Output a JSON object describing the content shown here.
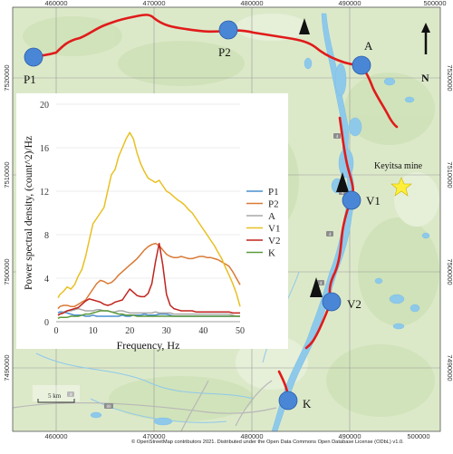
{
  "map": {
    "x_ticks": [
      "460000",
      "470000",
      "480000",
      "490000",
      "500000"
    ],
    "y_ticks": [
      "7520000",
      "7510000",
      "7500000",
      "7490000"
    ],
    "north_label": "N",
    "scalebar_label": "5 km",
    "mine_label": "Keyitsa mine",
    "station_labels": [
      "P1",
      "P2",
      "A",
      "V1",
      "V2",
      "K"
    ],
    "road_numbers": [
      "4",
      "4",
      "4",
      "4",
      "4",
      "80"
    ],
    "attribution": "© OpenStreetMap contributors 2021. Distributed under the Open Data Commons Open Database License (ODbL) v1.0.",
    "colors": {
      "route": "#e01b1b",
      "station": "#4a86d6",
      "mine_star": "#ffef3a",
      "land": "#dbe9c8",
      "water": "#8ec9ea"
    }
  },
  "chart_data": {
    "type": "line",
    "xlabel": "Frequency, Hz",
    "ylabel": "Power spectral density, (count^2)/Hz",
    "xlim": [
      0,
      50
    ],
    "ylim": [
      0,
      20
    ],
    "x_ticks": [
      0,
      10,
      20,
      30,
      40,
      50
    ],
    "y_ticks": [
      0,
      4,
      8,
      12,
      16,
      20
    ],
    "legend_position": "right",
    "x": [
      0.5,
      1,
      2,
      3,
      4,
      5,
      6,
      7,
      8,
      9,
      10,
      11,
      12,
      13,
      14,
      15,
      16,
      17,
      18,
      19,
      20,
      21,
      22,
      23,
      24,
      25,
      26,
      27,
      28,
      29,
      30,
      31,
      32,
      33,
      34,
      35,
      36,
      37,
      38,
      39,
      40,
      41,
      42,
      43,
      44,
      45,
      46,
      47,
      48,
      49,
      50
    ],
    "series": [
      {
        "name": "P1",
        "color": "#4a8fd0",
        "values": [
          0.8,
          0.9,
          0.9,
          0.8,
          0.7,
          0.6,
          0.6,
          0.6,
          0.5,
          0.5,
          0.6,
          0.5,
          0.5,
          0.5,
          0.5,
          0.5,
          0.5,
          0.5,
          0.6,
          0.5,
          0.5,
          0.6,
          0.6,
          0.6,
          0.7,
          0.6,
          0.6,
          0.6,
          0.7,
          0.7,
          0.7,
          0.6,
          0.5,
          0.5,
          0.5,
          0.5,
          0.5,
          0.5,
          0.5,
          0.5,
          0.5,
          0.5,
          0.5,
          0.5,
          0.5,
          0.5,
          0.5,
          0.5,
          0.5,
          0.5,
          0.5
        ]
      },
      {
        "name": "P2",
        "color": "#d97a36",
        "values": [
          1.2,
          1.4,
          1.5,
          1.5,
          1.4,
          1.4,
          1.6,
          1.8,
          2.0,
          2.5,
          3.0,
          3.5,
          3.8,
          3.7,
          3.5,
          3.6,
          3.9,
          4.3,
          4.6,
          4.9,
          5.2,
          5.5,
          5.8,
          6.2,
          6.6,
          6.9,
          7.1,
          7.2,
          7.0,
          6.6,
          6.2,
          6.0,
          5.9,
          5.9,
          6.0,
          5.9,
          5.8,
          5.8,
          5.9,
          6.0,
          6.0,
          5.9,
          5.9,
          5.8,
          5.7,
          5.5,
          5.3,
          5.1,
          4.6,
          4.0,
          3.4
        ]
      },
      {
        "name": "A",
        "color": "#a8a8a8",
        "values": [
          0.6,
          0.7,
          0.9,
          1.0,
          1.0,
          1.1,
          1.2,
          1.1,
          1.0,
          1.0,
          1.0,
          1.1,
          1.1,
          1.0,
          1.0,
          0.9,
          0.9,
          1.0,
          1.0,
          0.9,
          0.8,
          0.8,
          0.8,
          0.8,
          0.8,
          0.8,
          0.8,
          0.9,
          0.8,
          0.8,
          0.8,
          0.8,
          0.7,
          0.7,
          0.7,
          0.7,
          0.7,
          0.7,
          0.7,
          0.7,
          0.7,
          0.7,
          0.7,
          0.7,
          0.7,
          0.7,
          0.7,
          0.7,
          0.6,
          0.5,
          0.5
        ]
      },
      {
        "name": "V1",
        "color": "#e8c021",
        "values": [
          2.2,
          2.5,
          2.8,
          3.2,
          3.0,
          3.4,
          4.2,
          4.8,
          6.0,
          7.5,
          9.0,
          9.5,
          10.0,
          10.5,
          12.0,
          13.5,
          14.0,
          15.2,
          16.0,
          16.8,
          17.4,
          16.8,
          15.5,
          14.5,
          13.8,
          13.2,
          13.0,
          12.8,
          13.0,
          12.5,
          12.0,
          11.8,
          11.5,
          11.2,
          11.0,
          10.7,
          10.3,
          10.0,
          9.5,
          9.0,
          8.5,
          8.0,
          7.5,
          7.0,
          6.4,
          5.8,
          5.0,
          4.3,
          3.5,
          2.6,
          1.4
        ]
      },
      {
        "name": "V2",
        "color": "#c0241e",
        "values": [
          0.6,
          0.7,
          0.8,
          1.0,
          1.1,
          1.2,
          1.3,
          1.6,
          1.9,
          2.1,
          2.0,
          1.9,
          1.8,
          1.6,
          1.5,
          1.6,
          1.8,
          1.9,
          2.0,
          2.5,
          3.0,
          2.7,
          2.4,
          2.3,
          2.3,
          2.6,
          3.5,
          5.5,
          7.2,
          5.2,
          2.5,
          1.5,
          1.2,
          1.1,
          1.0,
          1.0,
          1.0,
          1.0,
          0.9,
          0.9,
          0.9,
          0.9,
          0.9,
          0.9,
          0.9,
          0.9,
          0.9,
          0.9,
          0.8,
          0.8,
          0.8
        ]
      },
      {
        "name": "K",
        "color": "#5c9a3a",
        "values": [
          0.3,
          0.4,
          0.4,
          0.4,
          0.5,
          0.5,
          0.5,
          0.6,
          0.7,
          0.7,
          0.8,
          0.9,
          1.0,
          1.0,
          1.0,
          0.9,
          0.8,
          0.7,
          0.7,
          0.6,
          0.6,
          0.6,
          0.5,
          0.5,
          0.5,
          0.5,
          0.5,
          0.5,
          0.5,
          0.5,
          0.5,
          0.5,
          0.5,
          0.5,
          0.5,
          0.5,
          0.5,
          0.5,
          0.5,
          0.5,
          0.5,
          0.5,
          0.5,
          0.5,
          0.5,
          0.5,
          0.5,
          0.5,
          0.5,
          0.5,
          0.5
        ]
      }
    ]
  }
}
